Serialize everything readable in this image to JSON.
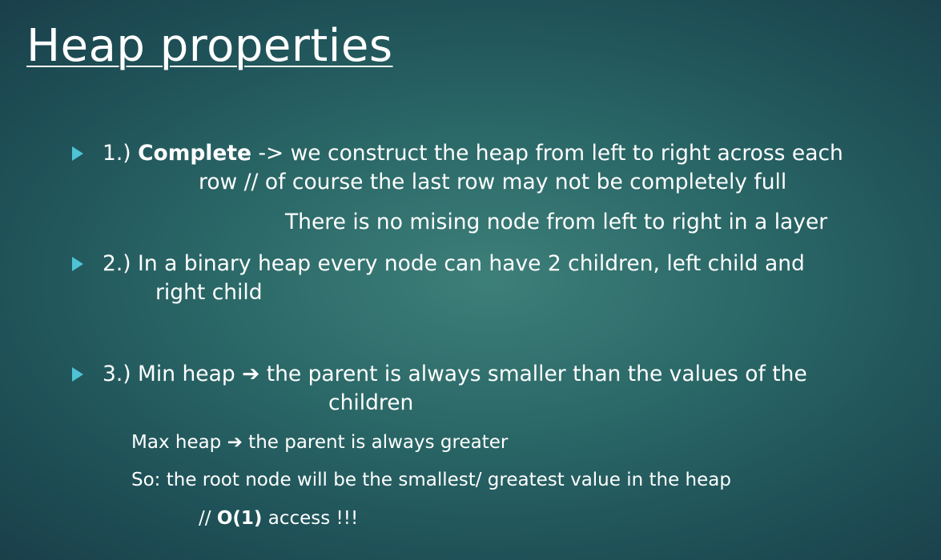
{
  "title": "Heap properties",
  "colors": {
    "text": "#ffffff",
    "bullet": "#4fc3d6",
    "background_center": "#3d7f79",
    "background_edge": "#1a3f4a"
  },
  "bullet_icon": "triangle-right-icon",
  "item1": {
    "number": "1.)",
    "term": "Complete",
    "rest": "-> we construct the heap from left to right across each",
    "continuation": "row // of course the last row may not be completely full",
    "note": "There is no mising node from left to right in a layer"
  },
  "item2": {
    "line1": "2.) In a binary heap every node can have 2 children, left child and",
    "line2": "right child"
  },
  "item3": {
    "line1": "3.) Min heap ➔ the parent is always smaller than the values of the",
    "line2": "children",
    "max_heap": "Max heap ➔ the parent is always greater",
    "so": "So: the root node will be the smallest/ greatest value in the heap",
    "access_prefix": "//",
    "access_bold": "O(1)",
    "access_suffix": "access !!!"
  }
}
